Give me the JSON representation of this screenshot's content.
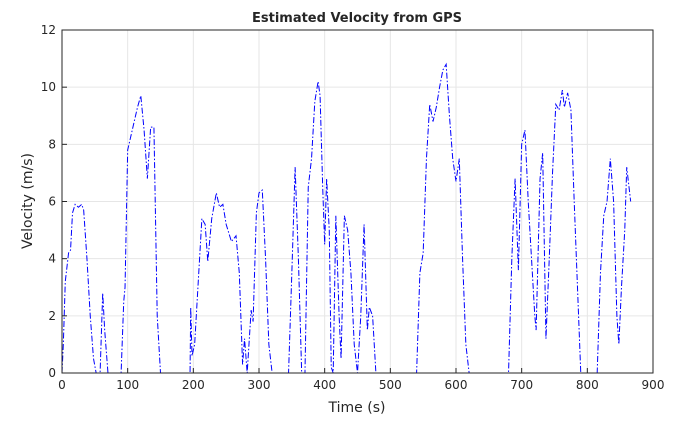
{
  "chart_data": {
    "type": "line",
    "title": "Estimated Velocity from GPS",
    "xlabel": "Time (s)",
    "ylabel": "Velocity (m/s)",
    "x": [
      0,
      2,
      5,
      10,
      13,
      16,
      20,
      25,
      30,
      33,
      38,
      43,
      48,
      52,
      58,
      62,
      65,
      70,
      90,
      94,
      96,
      100,
      105,
      110,
      115,
      120,
      125,
      130,
      135,
      140,
      145,
      150,
      195,
      196,
      198,
      202,
      207,
      213,
      218,
      222,
      228,
      235,
      240,
      245,
      250,
      258,
      265,
      270,
      275,
      278,
      282,
      288,
      291,
      296,
      300,
      305,
      310,
      315,
      320,
      345,
      350,
      355,
      360,
      365,
      370,
      375,
      380,
      385,
      390,
      393,
      397,
      400,
      403,
      407,
      410,
      413,
      417,
      422,
      425,
      430,
      435,
      440,
      445,
      450,
      455,
      460,
      465,
      468,
      473,
      478,
      540,
      545,
      550,
      555,
      560,
      565,
      570,
      575,
      580,
      585,
      590,
      595,
      600,
      605,
      610,
      615,
      620,
      680,
      685,
      690,
      695,
      700,
      705,
      710,
      715,
      720,
      722,
      728,
      732,
      737,
      742,
      747,
      752,
      757,
      762,
      765,
      770,
      775,
      780,
      785,
      790,
      815,
      820,
      825,
      830,
      835,
      840,
      845,
      848,
      852,
      857,
      860,
      866
    ],
    "values": [
      0,
      1,
      3.2,
      4.2,
      4.3,
      5.6,
      5.9,
      5.8,
      5.9,
      5.7,
      4,
      2,
      0.5,
      0,
      0,
      2.8,
      1.5,
      0,
      0,
      2.5,
      3,
      7.8,
      8.3,
      8.8,
      9.3,
      9.7,
      8.5,
      6.8,
      8.6,
      8.6,
      2,
      0,
      0,
      2.3,
      0.6,
      1,
      3,
      5.4,
      5.2,
      3.9,
      5.4,
      6.3,
      5.8,
      5.9,
      5.2,
      4.6,
      4.8,
      3.5,
      0.3,
      1.2,
      0,
      2.2,
      1.8,
      5.6,
      6.3,
      6.4,
      4,
      1,
      0,
      0,
      3.5,
      7.2,
      4,
      0,
      0,
      6.5,
      7.5,
      9.5,
      10.2,
      9.7,
      6.5,
      4.5,
      6.8,
      5,
      0.2,
      0,
      5.5,
      2,
      0.5,
      5.5,
      5,
      3.5,
      1,
      0,
      2,
      5.2,
      1.5,
      2.3,
      2,
      0,
      0,
      3.5,
      4.2,
      7.5,
      9.4,
      8.8,
      9.3,
      10,
      10.6,
      10.8,
      9,
      7.5,
      6.7,
      7.5,
      4,
      1,
      0,
      0,
      4,
      6.8,
      3.6,
      8,
      8.5,
      6,
      4,
      2,
      1.5,
      6.8,
      7.7,
      1.2,
      4,
      7,
      9.4,
      9.2,
      9.9,
      9.3,
      9.8,
      9.2,
      6,
      3,
      0,
      0,
      3.5,
      5.5,
      6,
      7.5,
      6,
      2,
      1,
      3,
      5,
      7.2,
      6
    ],
    "color": "#0000ff",
    "xlim": [
      0,
      900
    ],
    "xticks": [
      0,
      100,
      200,
      300,
      400,
      500,
      600,
      700,
      800,
      900
    ],
    "ylim": [
      0,
      12
    ],
    "yticks": [
      0,
      2,
      4,
      6,
      8,
      10,
      12
    ],
    "grid": true
  }
}
